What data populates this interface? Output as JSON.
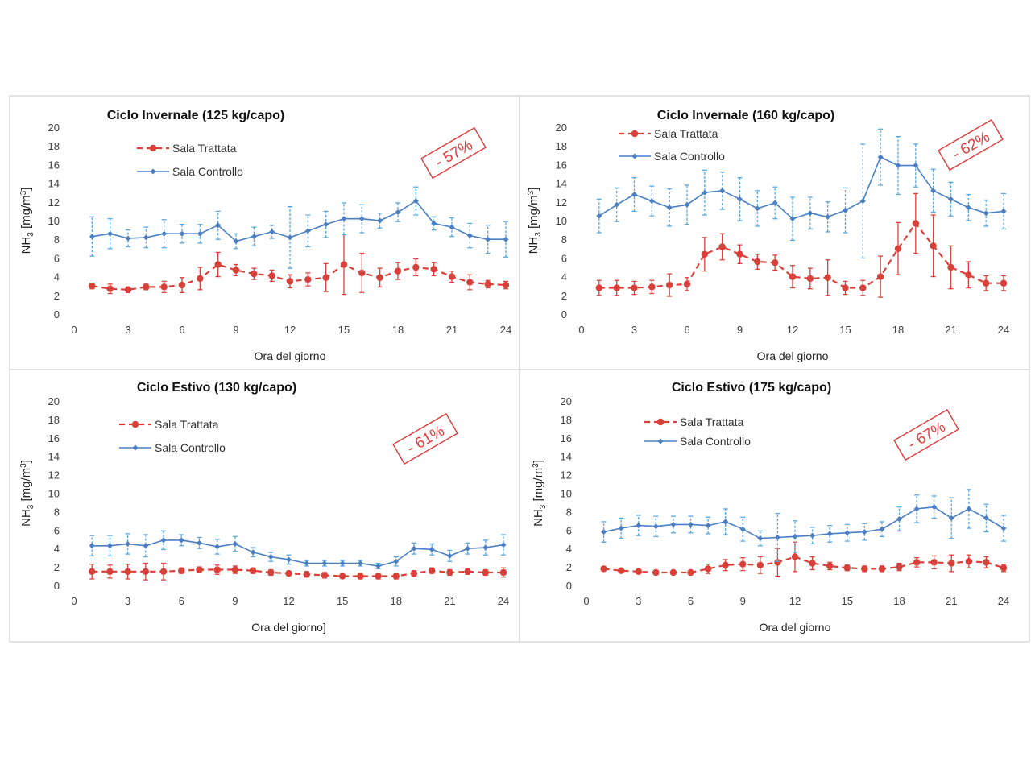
{
  "colors": {
    "treated": "#d9403a",
    "control": "#4a7fc4",
    "control_err": "#5aa8e0",
    "axis_text": "#404040",
    "grid_border": "#d0d0d0",
    "stamp": "#e03b3b"
  },
  "legend": {
    "treated": "Sala Trattata",
    "control": "Sala Controllo"
  },
  "chart_data": [
    {
      "type": "line",
      "title": "Ciclo Invernale (125 kg/capo)",
      "xlabel": "Ora del giorno",
      "ylabel_main": "NH",
      "ylabel_sub": "3",
      "ylabel_unit": " [mg/m",
      "ylabel_sup": "3",
      "ylabel_end": "]",
      "reduction": "- 57%",
      "xlim": [
        0,
        24
      ],
      "ylim": [
        0,
        20
      ],
      "xticks": [
        0,
        3,
        6,
        9,
        12,
        15,
        18,
        21,
        24
      ],
      "yticks": [
        0,
        2,
        4,
        6,
        8,
        10,
        12,
        14,
        16,
        18,
        20
      ],
      "x": [
        1,
        2,
        3,
        4,
        5,
        6,
        7,
        8,
        9,
        10,
        11,
        12,
        13,
        14,
        15,
        16,
        17,
        18,
        19,
        20,
        21,
        22,
        23,
        24
      ],
      "series": [
        {
          "name": "Sala Trattata",
          "values": [
            3.0,
            2.7,
            2.6,
            2.9,
            2.9,
            3.1,
            3.8,
            5.3,
            4.7,
            4.3,
            4.1,
            3.5,
            3.7,
            3.9,
            5.3,
            4.4,
            3.9,
            4.6,
            5.0,
            4.8,
            4.0,
            3.4,
            3.2,
            3.1
          ],
          "errors": [
            0.3,
            0.5,
            0.3,
            0.3,
            0.6,
            0.8,
            1.2,
            1.3,
            0.6,
            0.6,
            0.6,
            0.7,
            0.7,
            1.5,
            3.2,
            2.1,
            1.0,
            0.9,
            0.9,
            0.7,
            0.6,
            0.8,
            0.4,
            0.4
          ]
        },
        {
          "name": "Sala Controllo",
          "values": [
            8.3,
            8.6,
            8.1,
            8.2,
            8.6,
            8.6,
            8.6,
            9.5,
            7.8,
            8.3,
            8.8,
            8.2,
            8.9,
            9.6,
            10.2,
            10.2,
            10.0,
            10.9,
            12.1,
            9.7,
            9.3,
            8.4,
            8.0,
            8.0
          ],
          "errors": [
            2.1,
            1.6,
            0.9,
            1.1,
            1.5,
            1.0,
            1.0,
            1.5,
            0.8,
            1.0,
            0.7,
            3.3,
            1.7,
            1.4,
            1.7,
            1.5,
            0.8,
            1.0,
            1.5,
            0.7,
            1.0,
            1.3,
            1.5,
            1.9
          ]
        }
      ]
    },
    {
      "type": "line",
      "title": "Ciclo Invernale (160 kg/capo)",
      "xlabel": "Ora del giorno",
      "ylabel_main": "NH",
      "ylabel_sub": "3",
      "ylabel_unit": " [mg/m",
      "ylabel_sup": "3",
      "ylabel_end": "]",
      "reduction": "- 62%",
      "xlim": [
        0,
        24
      ],
      "ylim": [
        0,
        20
      ],
      "xticks": [
        0,
        3,
        6,
        9,
        12,
        15,
        18,
        21,
        24
      ],
      "yticks": [
        0,
        2,
        4,
        6,
        8,
        10,
        12,
        14,
        16,
        18,
        20
      ],
      "x": [
        1,
        2,
        3,
        4,
        5,
        6,
        7,
        8,
        9,
        10,
        11,
        12,
        13,
        14,
        15,
        16,
        17,
        18,
        19,
        20,
        21,
        22,
        23,
        24
      ],
      "series": [
        {
          "name": "Sala Trattata",
          "values": [
            2.8,
            2.8,
            2.8,
            2.9,
            3.1,
            3.2,
            6.4,
            7.2,
            6.4,
            5.6,
            5.5,
            4.0,
            3.8,
            3.9,
            2.8,
            2.8,
            4.0,
            7.0,
            9.7,
            7.3,
            5.0,
            4.2,
            3.3,
            3.3
          ],
          "errors": [
            0.8,
            0.8,
            0.7,
            0.7,
            1.2,
            0.7,
            1.8,
            1.4,
            1.0,
            0.8,
            0.8,
            1.2,
            1.1,
            1.9,
            0.7,
            0.8,
            2.2,
            2.8,
            3.2,
            3.3,
            2.3,
            1.4,
            0.8,
            0.8
          ]
        },
        {
          "name": "Sala Controllo",
          "values": [
            10.5,
            11.7,
            12.8,
            12.1,
            11.4,
            11.7,
            13.0,
            13.2,
            12.3,
            11.3,
            11.9,
            10.2,
            10.8,
            10.4,
            11.1,
            12.1,
            16.8,
            15.9,
            15.9,
            13.2,
            12.3,
            11.4,
            10.8,
            11.0
          ],
          "errors": [
            1.8,
            1.8,
            1.8,
            1.6,
            2.0,
            2.1,
            2.4,
            2.0,
            2.3,
            1.9,
            1.7,
            2.3,
            1.7,
            1.6,
            2.4,
            6.1,
            3.0,
            3.1,
            2.3,
            2.3,
            1.8,
            1.4,
            1.4,
            1.9
          ]
        }
      ]
    },
    {
      "type": "line",
      "title": "Ciclo Estivo (130 kg/capo)",
      "xlabel": "Ora del giorno]",
      "ylabel_main": "NH",
      "ylabel_sub": "3",
      "ylabel_unit": " [mg/m",
      "ylabel_sup": "3",
      "ylabel_end": "]",
      "reduction": "- 61%",
      "xlim": [
        0,
        24
      ],
      "ylim": [
        0,
        20
      ],
      "xticks": [
        0,
        3,
        6,
        9,
        12,
        15,
        18,
        21,
        24
      ],
      "yticks": [
        0,
        2,
        4,
        6,
        8,
        10,
        12,
        14,
        16,
        18,
        20
      ],
      "x": [
        1,
        2,
        3,
        4,
        5,
        6,
        7,
        8,
        9,
        10,
        11,
        12,
        13,
        14,
        15,
        16,
        17,
        18,
        19,
        20,
        21,
        22,
        23,
        24
      ],
      "series": [
        {
          "name": "Sala Trattata",
          "values": [
            1.5,
            1.5,
            1.5,
            1.5,
            1.5,
            1.6,
            1.7,
            1.7,
            1.7,
            1.6,
            1.4,
            1.3,
            1.2,
            1.1,
            1.0,
            1.0,
            1.0,
            1.0,
            1.3,
            1.6,
            1.4,
            1.5,
            1.4,
            1.4
          ],
          "errors": [
            0.8,
            0.7,
            0.8,
            0.9,
            0.9,
            0.3,
            0.3,
            0.5,
            0.4,
            0.3,
            0.3,
            0.2,
            0.3,
            0.3,
            0.2,
            0.3,
            0.3,
            0.3,
            0.3,
            0.3,
            0.3,
            0.3,
            0.3,
            0.5
          ]
        },
        {
          "name": "Sala Controllo",
          "values": [
            4.3,
            4.3,
            4.5,
            4.3,
            4.9,
            4.9,
            4.6,
            4.2,
            4.5,
            3.6,
            3.1,
            2.8,
            2.4,
            2.4,
            2.4,
            2.4,
            2.1,
            2.6,
            4.0,
            3.9,
            3.2,
            4.0,
            4.1,
            4.4
          ],
          "errors": [
            1.1,
            1.1,
            1.1,
            1.2,
            1.0,
            0.6,
            0.6,
            0.8,
            0.8,
            0.5,
            0.5,
            0.5,
            0.3,
            0.3,
            0.3,
            0.3,
            0.3,
            0.5,
            0.6,
            0.6,
            0.6,
            0.6,
            0.8,
            1.1
          ]
        }
      ]
    },
    {
      "type": "line",
      "title": "Ciclo Estivo (175 kg/capo)",
      "xlabel": "Ora del giorno",
      "ylabel_main": "NH",
      "ylabel_sub": "3",
      "ylabel_unit": " [mg/m",
      "ylabel_sup": "3",
      "ylabel_end": "]",
      "reduction": "- 67%",
      "xlim": [
        0,
        24
      ],
      "ylim": [
        0,
        20
      ],
      "xticks": [
        0,
        3,
        6,
        9,
        12,
        15,
        18,
        21,
        24
      ],
      "yticks": [
        0,
        2,
        4,
        6,
        8,
        10,
        12,
        14,
        16,
        18,
        20
      ],
      "x": [
        1,
        2,
        3,
        4,
        5,
        6,
        7,
        8,
        9,
        10,
        11,
        12,
        13,
        14,
        15,
        16,
        17,
        18,
        19,
        20,
        21,
        22,
        23,
        24
      ],
      "series": [
        {
          "name": "Sala Trattata",
          "values": [
            1.8,
            1.6,
            1.5,
            1.4,
            1.4,
            1.4,
            1.8,
            2.2,
            2.3,
            2.2,
            2.5,
            3.1,
            2.4,
            2.1,
            1.9,
            1.8,
            1.8,
            2.0,
            2.5,
            2.5,
            2.4,
            2.6,
            2.5,
            1.9
          ],
          "errors": [
            0.2,
            0.2,
            0.2,
            0.2,
            0.2,
            0.2,
            0.5,
            0.6,
            0.7,
            0.9,
            1.5,
            1.6,
            0.7,
            0.4,
            0.3,
            0.3,
            0.3,
            0.4,
            0.5,
            0.7,
            0.9,
            0.7,
            0.6,
            0.4
          ]
        },
        {
          "name": "Sala Controllo",
          "values": [
            5.8,
            6.2,
            6.5,
            6.4,
            6.6,
            6.6,
            6.5,
            6.9,
            6.1,
            5.1,
            5.2,
            5.3,
            5.4,
            5.6,
            5.7,
            5.8,
            6.1,
            7.2,
            8.3,
            8.5,
            7.3,
            8.3,
            7.3,
            6.2
          ],
          "errors": [
            1.1,
            1.1,
            1.1,
            1.1,
            0.9,
            0.9,
            0.9,
            1.4,
            1.3,
            0.8,
            2.6,
            1.7,
            0.9,
            0.9,
            0.9,
            0.9,
            0.8,
            1.3,
            1.5,
            1.2,
            2.2,
            2.1,
            1.5,
            1.4
          ]
        }
      ]
    }
  ]
}
